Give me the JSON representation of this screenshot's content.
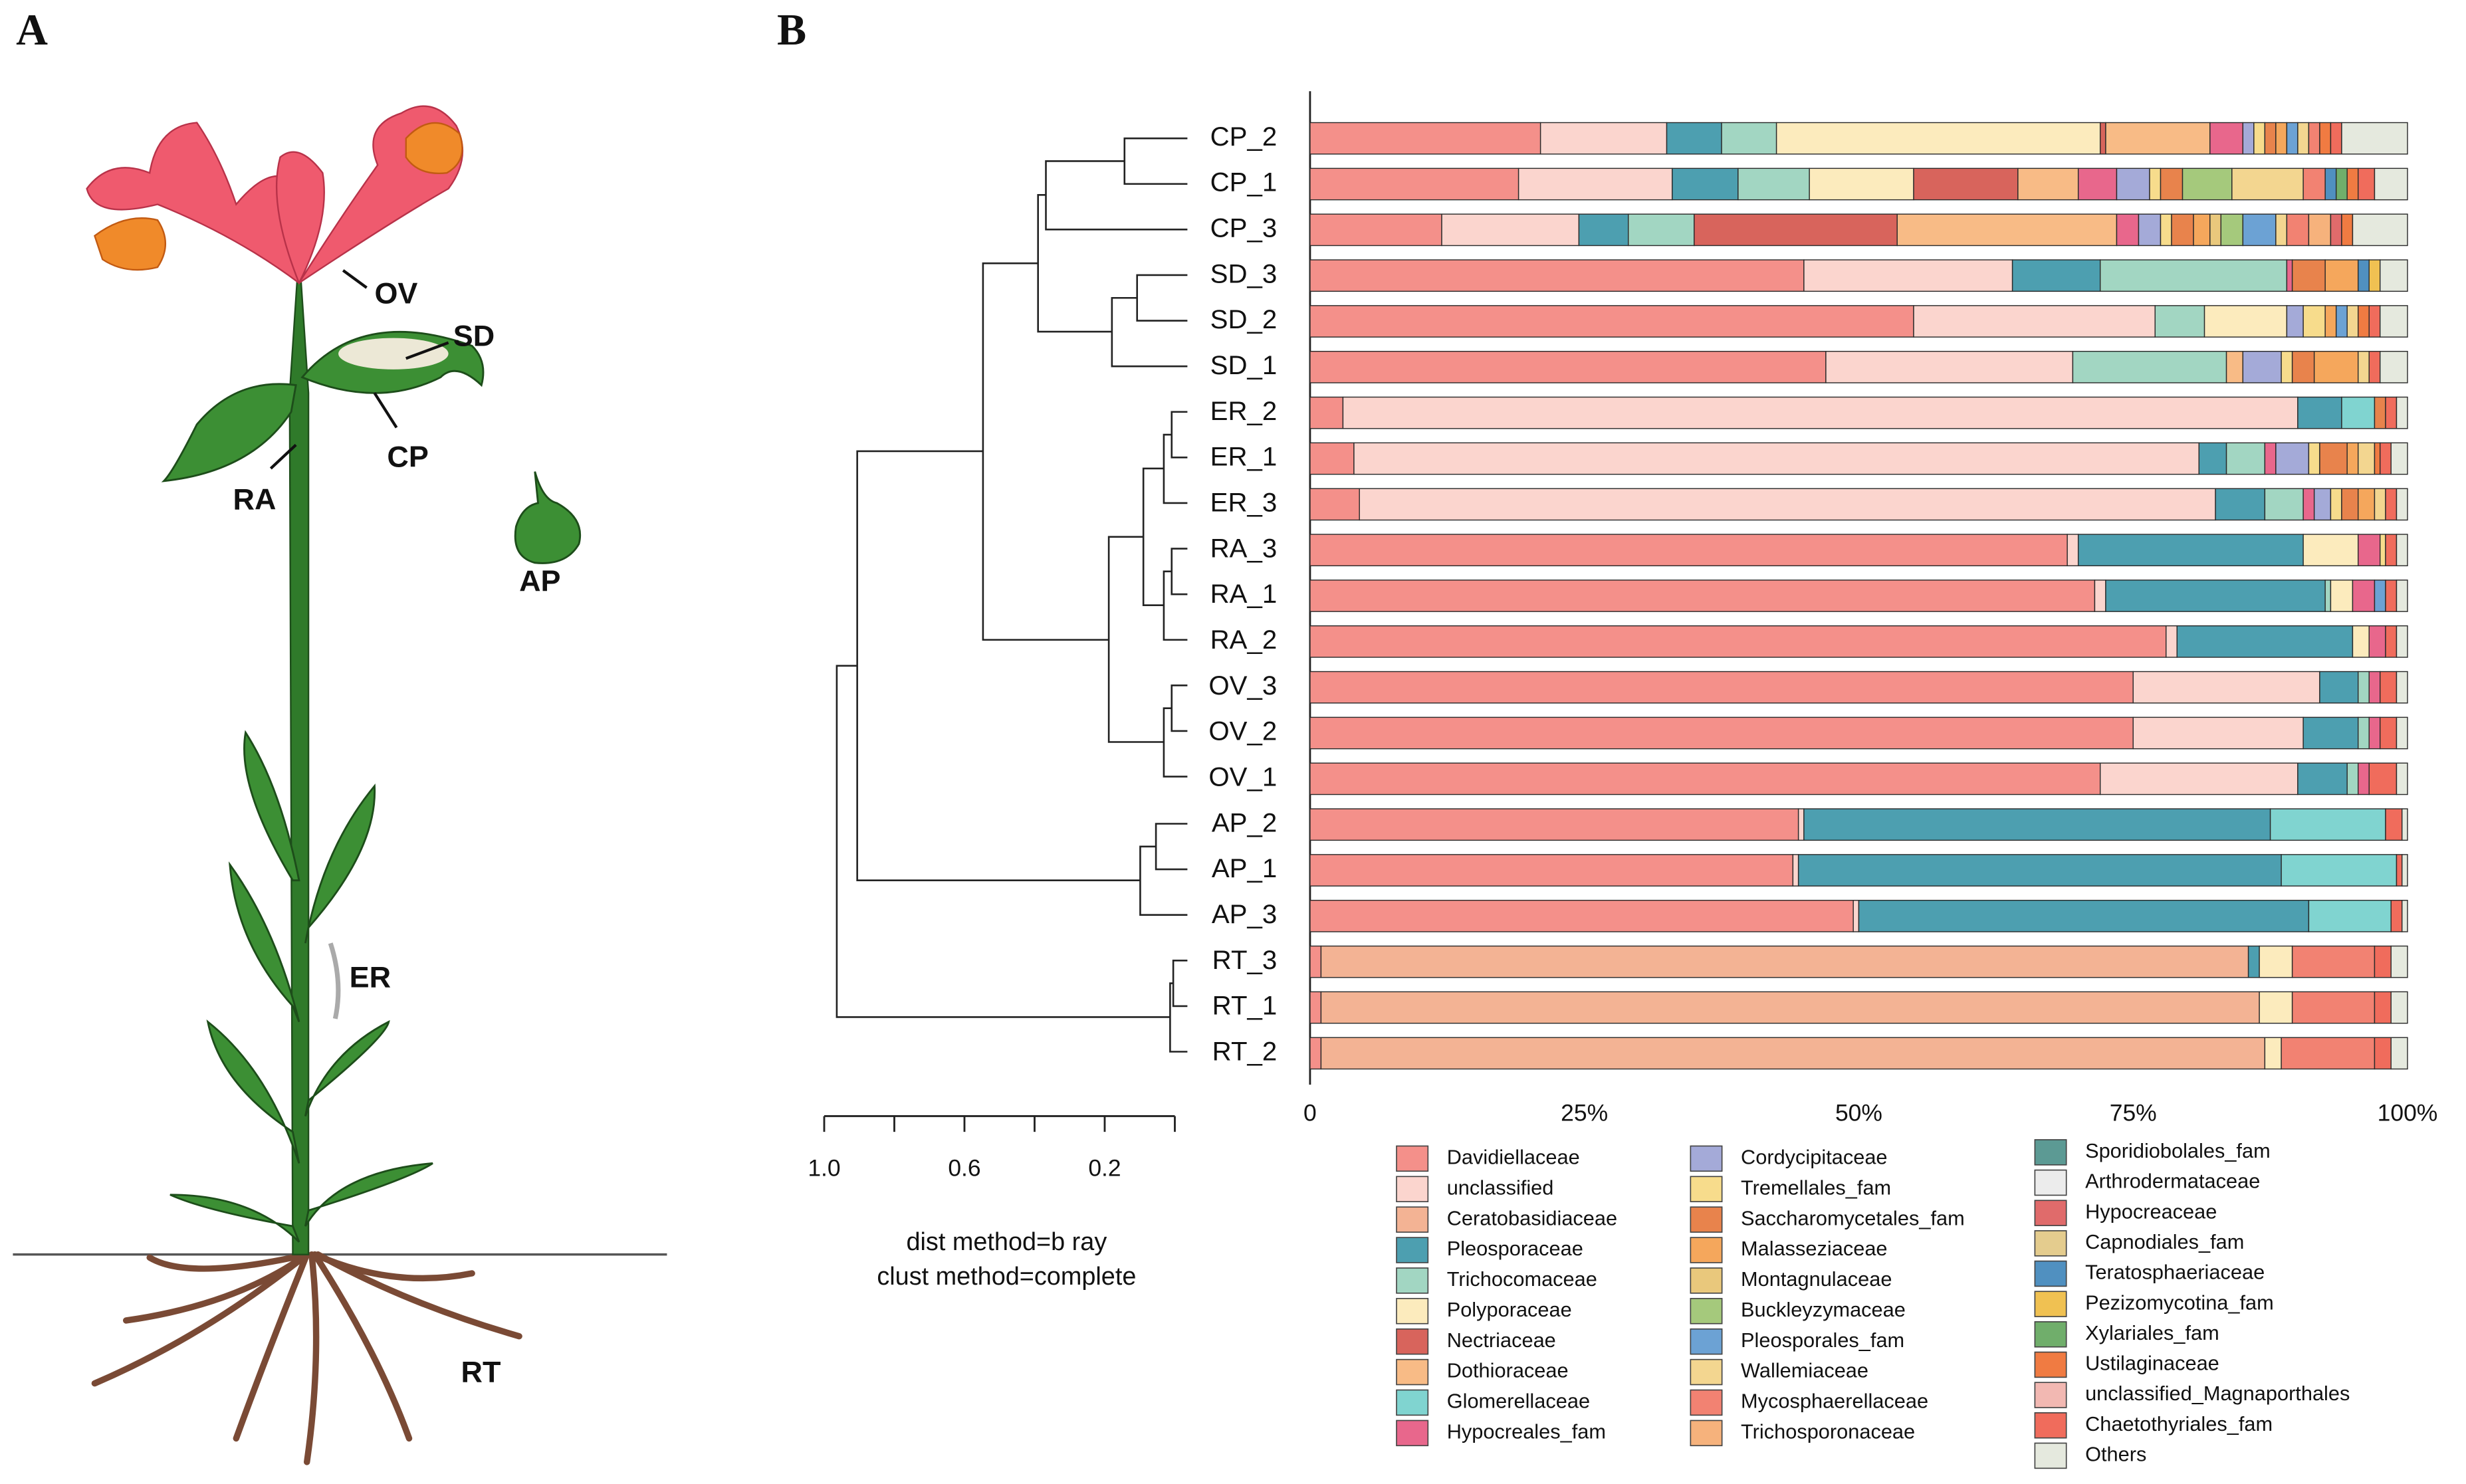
{
  "panel_a": {
    "label": "A",
    "parts": {
      "ov": "OV",
      "sd": "SD",
      "cp": "CP",
      "ra": "RA",
      "ap": "AP",
      "er": "ER",
      "rt": "RT"
    }
  },
  "chart_data": {
    "type": "stacked-bar-horizontal",
    "panel_label": "B",
    "categories": [
      "CP_2",
      "CP_1",
      "CP_3",
      "SD_3",
      "SD_2",
      "SD_1",
      "ER_2",
      "ER_1",
      "ER_3",
      "RA_3",
      "RA_1",
      "RA_2",
      "OV_3",
      "OV_2",
      "OV_1",
      "AP_2",
      "AP_1",
      "AP_3",
      "RT_3",
      "RT_1",
      "RT_2"
    ],
    "xlim": [
      0,
      100
    ],
    "xticks": [
      0,
      {
        "value": 25,
        "label": "25%"
      },
      {
        "value": 50,
        "label": "50%"
      },
      {
        "value": 75,
        "label": "75%"
      },
      {
        "value": 100,
        "label": "100%"
      }
    ],
    "series": [
      {
        "name": "Davidiellaceae",
        "color": "#f4908a",
        "values": [
          21,
          19,
          12,
          45,
          55,
          47,
          3,
          4,
          4.5,
          69,
          71.5,
          78,
          75,
          75,
          72,
          44.5,
          44,
          49.5,
          1,
          1,
          1
        ]
      },
      {
        "name": "unclassified",
        "color": "#fbd5ce",
        "values": [
          11.5,
          14,
          12.5,
          19,
          22,
          22.5,
          87,
          77,
          78,
          1,
          1,
          1,
          17,
          15.5,
          18,
          0.5,
          0.5,
          0.5,
          0,
          0,
          0
        ]
      },
      {
        "name": "Ceratobasidiaceae",
        "color": "#f3b394",
        "values": [
          0,
          0,
          0,
          0,
          0,
          0,
          0,
          0,
          0,
          0,
          0,
          0,
          0,
          0,
          0,
          0,
          0,
          0,
          84.5,
          85.5,
          86
        ]
      },
      {
        "name": "Pleosporaceae",
        "color": "#4d9fb0",
        "values": [
          5,
          6,
          4.5,
          8,
          0,
          0,
          4,
          2.5,
          4.5,
          20.5,
          20,
          16,
          3.5,
          5,
          4.5,
          42.5,
          44,
          41,
          1,
          0,
          0
        ]
      },
      {
        "name": "Trichocomaceae",
        "color": "#a2d6c2",
        "values": [
          5,
          6.5,
          6,
          17,
          4.5,
          14,
          0,
          3.5,
          3.5,
          0,
          0.5,
          0,
          1,
          1,
          1,
          0,
          0,
          0,
          0,
          0,
          0
        ]
      },
      {
        "name": "Polyporaceae",
        "color": "#fcebbd",
        "values": [
          29.5,
          9.5,
          0,
          0,
          7.5,
          0,
          0,
          0,
          0,
          5,
          2,
          1.5,
          0,
          0,
          0,
          0,
          0,
          0,
          3,
          3,
          1.5
        ]
      },
      {
        "name": "Nectriaceae",
        "color": "#d8645c",
        "values": [
          0.5,
          9.5,
          18.5,
          0,
          0,
          0,
          0,
          0,
          0,
          0,
          0,
          0,
          0,
          0,
          0,
          0,
          0,
          0,
          0,
          0,
          0
        ]
      },
      {
        "name": "Dothioraceae",
        "color": "#f8bb86",
        "values": [
          9.5,
          5.5,
          20,
          0,
          0,
          1.5,
          0,
          0,
          0,
          0,
          0,
          0,
          0,
          0,
          0,
          0,
          0,
          0,
          0,
          0,
          0
        ]
      },
      {
        "name": "Glomerellaceae",
        "color": "#80d4d0",
        "values": [
          0,
          0,
          0,
          0,
          0,
          0,
          3,
          0,
          0,
          0,
          0,
          0,
          0,
          0,
          0,
          10.5,
          10.5,
          7.5,
          0,
          0,
          0
        ]
      },
      {
        "name": "Hypocreales_fam",
        "color": "#e8678c",
        "values": [
          3,
          3.5,
          2,
          0.5,
          0,
          0,
          0,
          1,
          1,
          2,
          2,
          1.5,
          1,
          1,
          1,
          0,
          0,
          0,
          0,
          0,
          0
        ]
      },
      {
        "name": "Cordycipitaceae",
        "color": "#a4aad8",
        "values": [
          1,
          3,
          2,
          0,
          1.5,
          3.5,
          0,
          3,
          1.5,
          0,
          0,
          0,
          0,
          0,
          0,
          0,
          0,
          0,
          0,
          0,
          0
        ]
      },
      {
        "name": "Tremellales_fam",
        "color": "#f7dc8c",
        "values": [
          1,
          1,
          1,
          0,
          2,
          1,
          0,
          1,
          1,
          0.5,
          0,
          0,
          0,
          0,
          0,
          0,
          0,
          0,
          0,
          0,
          0
        ]
      },
      {
        "name": "Saccharomycetales_fam",
        "color": "#e8834c",
        "values": [
          1,
          2,
          2,
          3,
          0,
          2,
          1,
          2.5,
          1.5,
          0,
          0,
          0,
          0,
          0,
          0,
          0,
          0,
          0,
          0,
          0,
          0
        ]
      },
      {
        "name": "Malasseziaceae",
        "color": "#f5a75c",
        "values": [
          1,
          0,
          1.5,
          3,
          1,
          4,
          0,
          1,
          1.5,
          0,
          0,
          0,
          0,
          0,
          0,
          0,
          0,
          0,
          0,
          0,
          0
        ]
      },
      {
        "name": "Montagnulaceae",
        "color": "#e9c87c",
        "values": [
          0,
          0,
          1,
          0,
          0,
          0,
          0,
          0,
          0,
          0,
          0,
          0,
          0,
          0,
          0,
          0,
          0,
          0,
          0,
          0,
          0
        ]
      },
      {
        "name": "Buckleyzymaceae",
        "color": "#a5c97c",
        "values": [
          0,
          4.5,
          2,
          0,
          0,
          0,
          0,
          0,
          0,
          0,
          0,
          0,
          0,
          0,
          0,
          0,
          0,
          0,
          0,
          0,
          0
        ]
      },
      {
        "name": "Pleosporales_fam",
        "color": "#6ca2d4",
        "values": [
          1,
          0,
          3,
          0,
          1,
          0,
          0,
          0,
          0,
          0,
          1,
          0,
          0,
          0,
          0,
          0,
          0,
          0,
          0,
          0,
          0
        ]
      },
      {
        "name": "Wallemiaceae",
        "color": "#f3d690",
        "values": [
          1,
          6.5,
          1,
          0,
          1,
          1,
          0,
          1.5,
          1,
          0,
          0,
          0,
          0,
          0,
          0,
          0,
          0,
          0,
          0,
          0,
          0
        ]
      },
      {
        "name": "Mycosphaerellaceae",
        "color": "#f28272",
        "values": [
          1,
          2,
          2,
          0,
          0,
          0,
          0,
          0,
          0,
          0,
          0,
          0,
          0,
          0,
          0,
          0,
          0,
          0,
          7.5,
          7.5,
          8.5
        ]
      },
      {
        "name": "Trichosporonaceae",
        "color": "#f6b27c",
        "values": [
          0,
          0,
          2,
          0,
          0,
          0,
          0,
          0,
          0,
          0,
          0,
          0,
          0,
          0,
          0,
          0,
          0,
          0,
          0,
          0,
          0
        ]
      },
      {
        "name": "Sporidiobolales_fam",
        "color": "#5c9a94",
        "values": [
          0,
          0,
          0,
          0,
          0,
          0,
          0,
          0,
          0,
          0,
          0,
          0,
          0,
          0,
          0,
          0,
          0,
          0,
          0,
          0,
          0
        ]
      },
      {
        "name": "Arthrodermataceae",
        "color": "#ececec",
        "values": [
          0,
          0,
          0,
          0,
          0,
          0,
          0,
          0,
          0,
          0,
          0,
          0,
          0,
          0,
          0,
          0,
          0,
          0,
          0,
          0,
          0
        ]
      },
      {
        "name": "Hypocreaceae",
        "color": "#e06b6b",
        "values": [
          0,
          0,
          1,
          0,
          0,
          0,
          0,
          0,
          0,
          0,
          0,
          0,
          0,
          0,
          0,
          0,
          0,
          0,
          0,
          0,
          0
        ]
      },
      {
        "name": "Capnodiales_fam",
        "color": "#e4cc8e",
        "values": [
          0,
          0,
          0,
          0,
          0,
          0,
          0,
          0,
          0,
          0,
          0,
          0,
          0,
          0,
          0,
          0,
          0,
          0,
          0,
          0,
          0
        ]
      },
      {
        "name": "Teratosphaeriaceae",
        "color": "#5090c0",
        "values": [
          0,
          1,
          0,
          1,
          0,
          0,
          0,
          0,
          0,
          0,
          0,
          0,
          0,
          0,
          0,
          0,
          0,
          0,
          0,
          0,
          0
        ]
      },
      {
        "name": "Pezizomycotina_fam",
        "color": "#f0c152",
        "values": [
          0,
          0,
          0,
          1,
          0,
          0,
          0,
          0,
          0,
          0,
          0,
          0,
          0,
          0,
          0,
          0,
          0,
          0,
          0,
          0,
          0
        ]
      },
      {
        "name": "Xylariales_fam",
        "color": "#70ae6b",
        "values": [
          0,
          1,
          0,
          0,
          0,
          0,
          0,
          0,
          0,
          0,
          0,
          0,
          0,
          0,
          0,
          0,
          0,
          0,
          0,
          0,
          0
        ]
      },
      {
        "name": "Ustilaginaceae",
        "color": "#f07b42",
        "values": [
          1,
          1,
          1,
          0,
          1,
          0,
          0,
          0.5,
          0,
          0,
          0,
          0,
          0,
          0,
          0,
          0,
          0,
          0,
          0,
          0,
          0
        ]
      },
      {
        "name": "unclassified_Magnaporthales",
        "color": "#f2b8b2",
        "values": [
          0,
          0,
          0,
          0,
          0,
          0,
          0,
          0,
          0,
          0,
          0,
          0,
          0,
          0,
          0,
          0,
          0,
          0,
          0,
          0,
          0
        ]
      },
      {
        "name": "Chaetothyriales_fam",
        "color": "#f06c5c",
        "values": [
          1,
          1.5,
          0,
          0,
          1,
          1,
          1,
          1,
          1,
          1,
          1,
          1,
          1.5,
          1.5,
          2.5,
          1.5,
          0.5,
          1,
          1.5,
          1.5,
          1.5
        ]
      },
      {
        "name": "Others",
        "color": "#e5e9de",
        "values": [
          6,
          3,
          5,
          2.5,
          2.5,
          2.5,
          1,
          1.5,
          1,
          1,
          1,
          1,
          1,
          1,
          1,
          0.5,
          0.5,
          0.5,
          1.5,
          1.5,
          1.5
        ]
      }
    ],
    "dendrogram": {
      "xlim": [
        1,
        0
      ],
      "tick_marks": [
        1,
        0.8,
        0.6,
        0.4,
        0.2,
        0
      ],
      "tick_labels": [
        {
          "value": 1,
          "label": "1.0"
        },
        {
          "value": 0.6,
          "label": "0.6"
        },
        {
          "value": 0.2,
          "label": "0.2"
        }
      ],
      "caption": [
        "dist method=b ray",
        "clust method=complete"
      ]
    }
  }
}
